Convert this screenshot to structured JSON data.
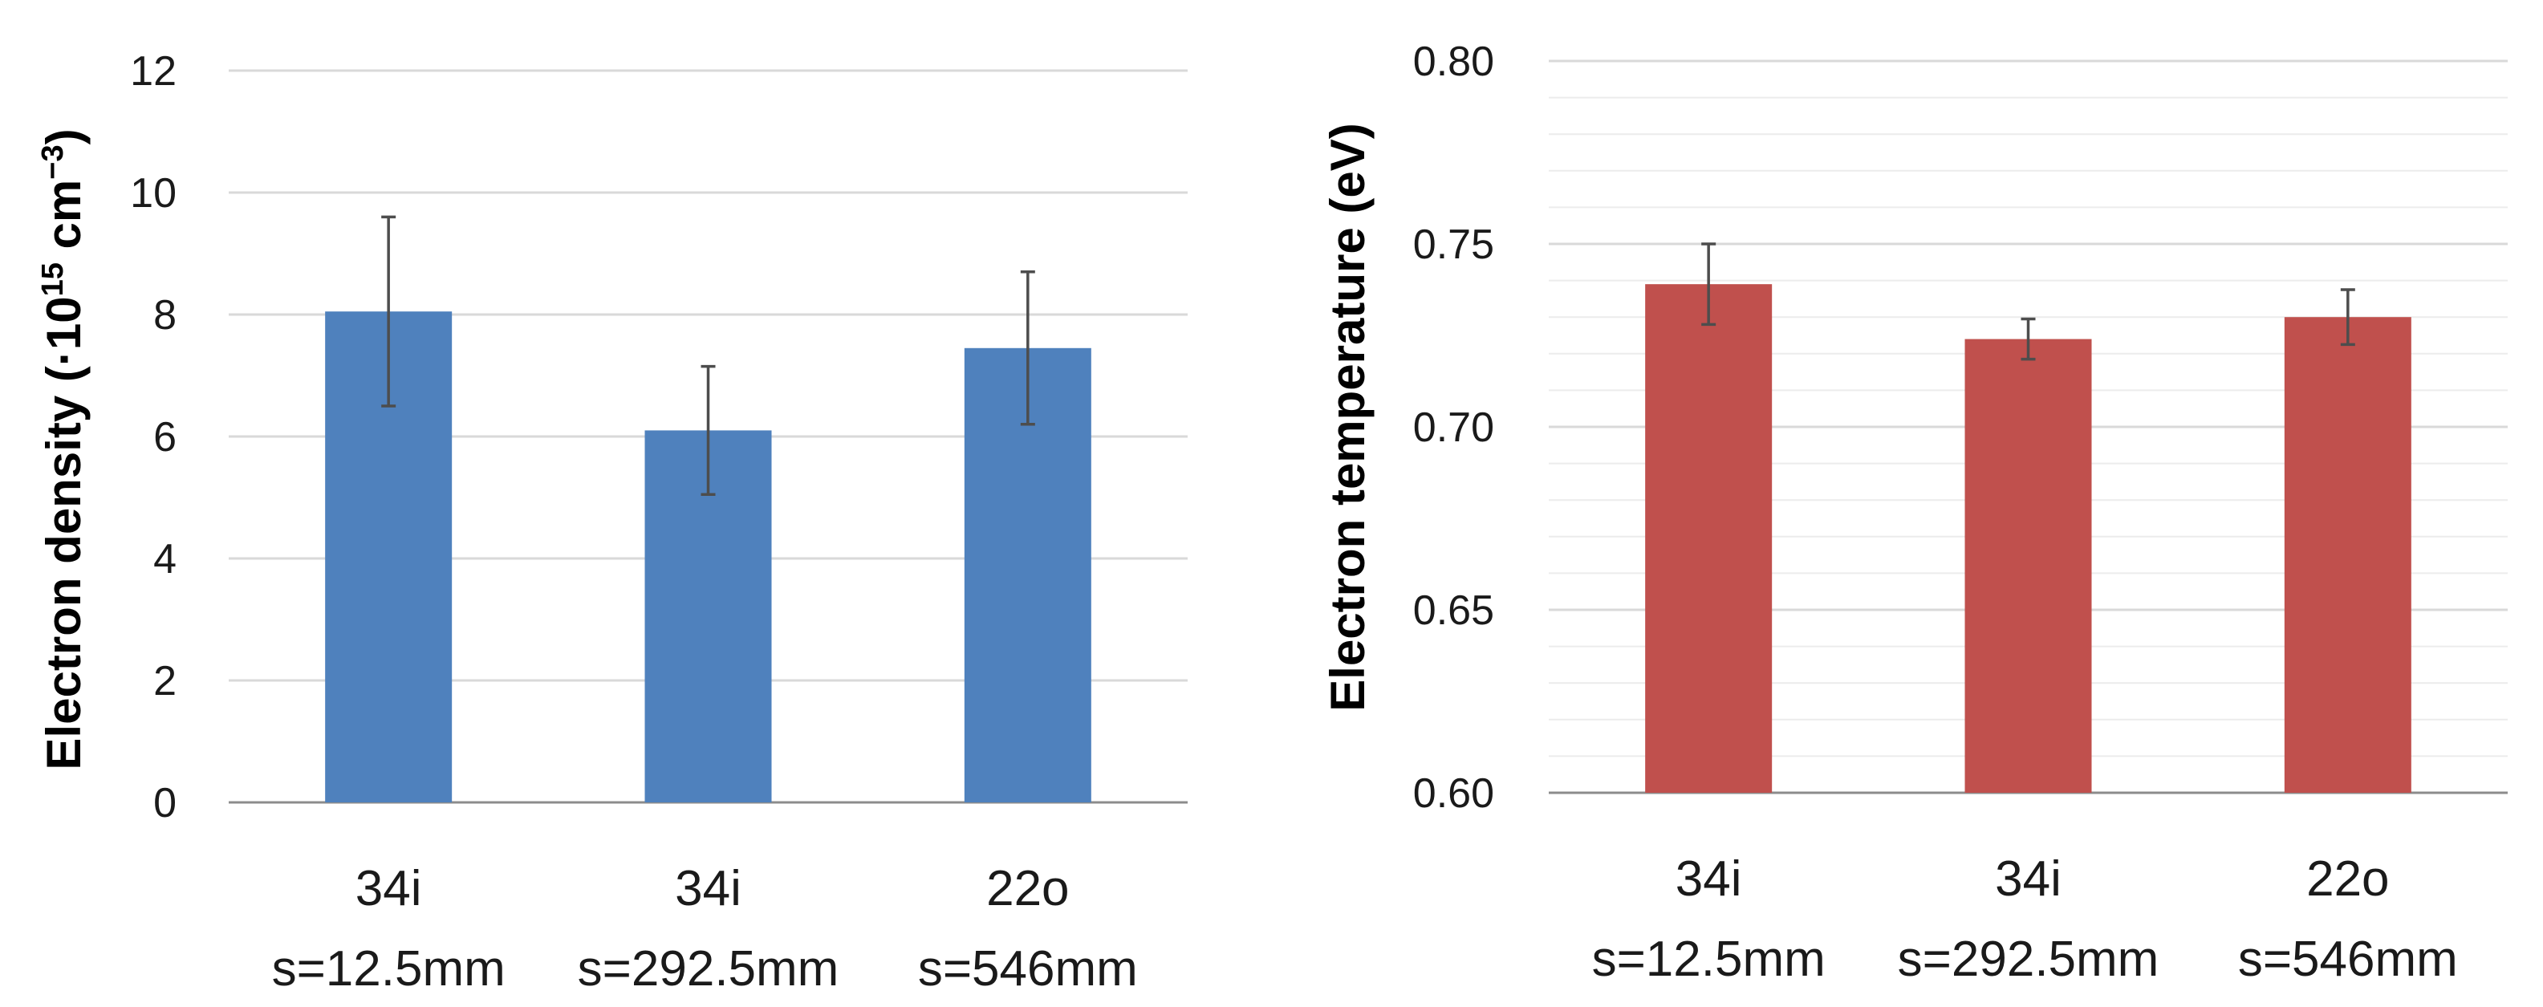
{
  "chart_data": [
    {
      "type": "bar",
      "title": "",
      "ylabel_prefix": "Electron density (·10",
      "ylabel_exp1": "15",
      "ylabel_mid": " cm",
      "ylabel_exp2": "−3",
      "ylabel_suffix": ")",
      "xlabel": "",
      "ylim": [
        0,
        12
      ],
      "yticks": [
        0,
        2,
        4,
        6,
        8,
        10,
        12
      ],
      "ytick_labels": [
        "0",
        "2",
        "4",
        "6",
        "8",
        "10",
        "12"
      ],
      "categories": [
        {
          "line1": "34i",
          "line2": "s=12.5mm"
        },
        {
          "line1": "34i",
          "line2": "s=292.5mm"
        },
        {
          "line1": "22o",
          "line2": "s=546mm"
        }
      ],
      "values": [
        8.05,
        6.1,
        7.45
      ],
      "errors": [
        1.55,
        1.05,
        1.25
      ],
      "color": "#4f81bd"
    },
    {
      "type": "bar",
      "title": "",
      "ylabel": "Electron temperature (eV)",
      "xlabel": "",
      "ylim": [
        0.6,
        0.8
      ],
      "yticks": [
        0.6,
        0.65,
        0.7,
        0.75,
        0.8
      ],
      "ytick_labels": [
        "0.60",
        "0.65",
        "0.70",
        "0.75",
        "0.80"
      ],
      "minor_step": 0.01,
      "categories": [
        {
          "line1": "34i",
          "line2": "s=12.5mm"
        },
        {
          "line1": "34i",
          "line2": "s=292.5mm"
        },
        {
          "line1": "22o",
          "line2": "s=546mm"
        }
      ],
      "values": [
        0.739,
        0.724,
        0.73
      ],
      "errors": [
        0.011,
        0.0055,
        0.0075
      ],
      "color": "#c0504d"
    }
  ]
}
